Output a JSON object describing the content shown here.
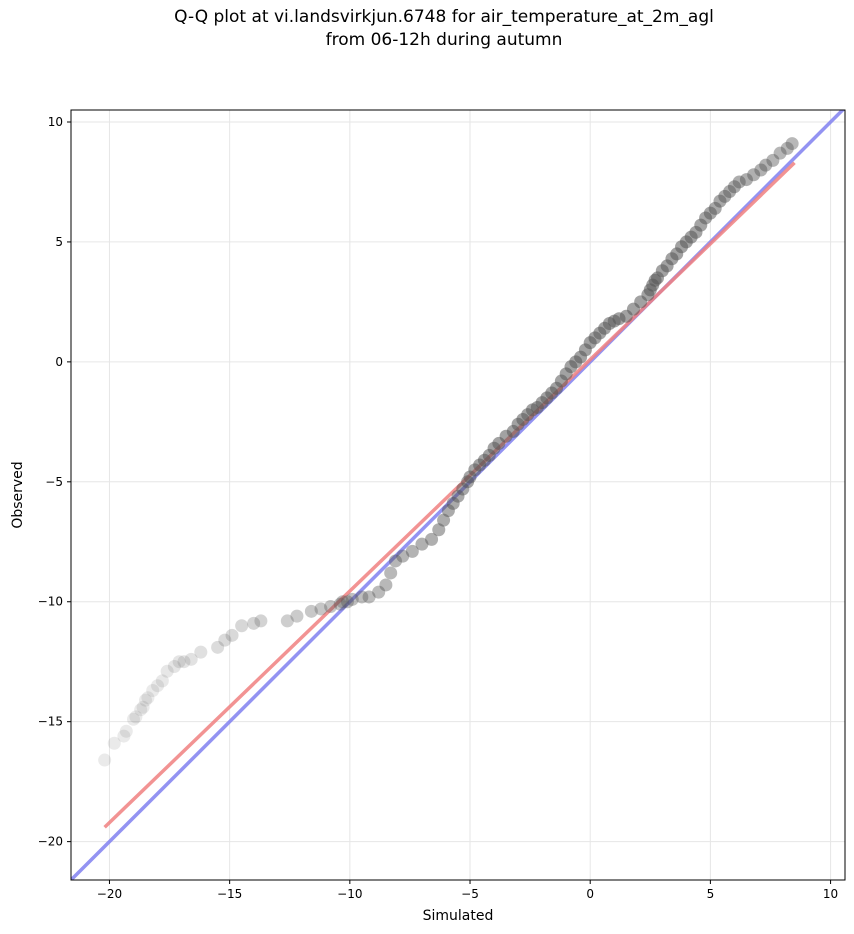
{
  "chart_data": {
    "type": "scatter",
    "title_lines": [
      "Q-Q plot at vi.landsvirkjun.6748 for air_temperature_at_2m_agl",
      "from 06-12h during autumn"
    ],
    "xlabel": "Simulated",
    "ylabel": "Observed",
    "xlim": [
      -21.6,
      10.6
    ],
    "ylim": [
      -21.6,
      10.5
    ],
    "x_ticks": [
      -20,
      -15,
      -10,
      -5,
      0,
      5,
      10
    ],
    "y_ticks": [
      -20,
      -15,
      -10,
      -5,
      0,
      5,
      10
    ],
    "grid": true,
    "colors": {
      "points": "#555555",
      "fit_line": "#f08080",
      "identity_line": "#8080f0",
      "grid": "#e6e6e6"
    },
    "fit_line": {
      "x": [
        -20.2,
        8.5
      ],
      "y": [
        -19.4,
        8.3
      ]
    },
    "identity_line": {
      "x": [
        -21.6,
        10.6
      ],
      "y": [
        -21.6,
        10.6
      ]
    },
    "series": [
      {
        "x": [
          -20.2,
          -19.8,
          -19.4,
          -19.3,
          -19.0,
          -18.9,
          -18.7,
          -18.6,
          -18.5,
          -18.4,
          -18.2,
          -18.0,
          -17.8,
          -17.6,
          -17.3,
          -17.1,
          -16.9,
          -16.6,
          -16.2,
          -15.5,
          -15.2,
          -14.9,
          -14.5,
          -14.0,
          -13.7,
          -12.6,
          -12.2,
          -11.6,
          -11.2,
          -10.8,
          -10.4,
          -10.3,
          -10.1,
          -9.9,
          -9.5,
          -9.2,
          -8.8,
          -8.5,
          -8.3,
          -8.1,
          -7.8,
          -7.4,
          -7.0,
          -6.6,
          -6.3,
          -6.1,
          -5.9,
          -5.7,
          -5.5,
          -5.3,
          -5.1,
          -5.0,
          -4.8,
          -4.6,
          -4.4,
          -4.2,
          -4.0,
          -3.8,
          -3.5,
          -3.2,
          -3.0,
          -2.8,
          -2.6,
          -2.4,
          -2.2,
          -2.0,
          -1.8,
          -1.6,
          -1.4,
          -1.2,
          -1.0,
          -0.8,
          -0.6,
          -0.4,
          -0.2,
          0.0,
          0.2,
          0.4,
          0.6,
          0.8,
          1.0,
          1.2,
          1.5,
          1.8,
          2.1,
          2.4,
          2.5,
          2.6,
          2.7,
          2.8,
          3.0,
          3.2,
          3.4,
          3.6,
          3.8,
          4.0,
          4.2,
          4.4,
          4.6,
          4.8,
          5.0,
          5.2,
          5.4,
          5.6,
          5.8,
          6.0,
          6.2,
          6.5,
          6.8,
          7.1,
          7.3,
          7.6,
          7.9,
          8.2,
          8.4
        ],
        "y": [
          -16.6,
          -15.9,
          -15.6,
          -15.4,
          -14.9,
          -14.8,
          -14.5,
          -14.4,
          -14.1,
          -14.0,
          -13.7,
          -13.5,
          -13.3,
          -12.9,
          -12.7,
          -12.5,
          -12.5,
          -12.4,
          -12.1,
          -11.9,
          -11.6,
          -11.4,
          -11.0,
          -10.9,
          -10.8,
          -10.8,
          -10.6,
          -10.4,
          -10.3,
          -10.2,
          -10.1,
          -10.0,
          -10.0,
          -9.9,
          -9.8,
          -9.8,
          -9.6,
          -9.3,
          -8.8,
          -8.3,
          -8.1,
          -7.9,
          -7.6,
          -7.4,
          -7.0,
          -6.6,
          -6.2,
          -5.9,
          -5.6,
          -5.3,
          -5.0,
          -4.8,
          -4.5,
          -4.3,
          -4.1,
          -3.9,
          -3.6,
          -3.4,
          -3.1,
          -2.9,
          -2.6,
          -2.4,
          -2.2,
          -2.0,
          -1.9,
          -1.7,
          -1.5,
          -1.3,
          -1.1,
          -0.8,
          -0.5,
          -0.2,
          0.0,
          0.2,
          0.5,
          0.8,
          1.0,
          1.2,
          1.4,
          1.6,
          1.7,
          1.8,
          1.9,
          2.2,
          2.5,
          2.8,
          3.0,
          3.2,
          3.4,
          3.5,
          3.8,
          4.0,
          4.3,
          4.5,
          4.8,
          5.0,
          5.2,
          5.4,
          5.7,
          6.0,
          6.2,
          6.4,
          6.7,
          6.9,
          7.1,
          7.3,
          7.5,
          7.6,
          7.8,
          8.0,
          8.2,
          8.4,
          8.7,
          8.9,
          9.1
        ]
      }
    ]
  }
}
